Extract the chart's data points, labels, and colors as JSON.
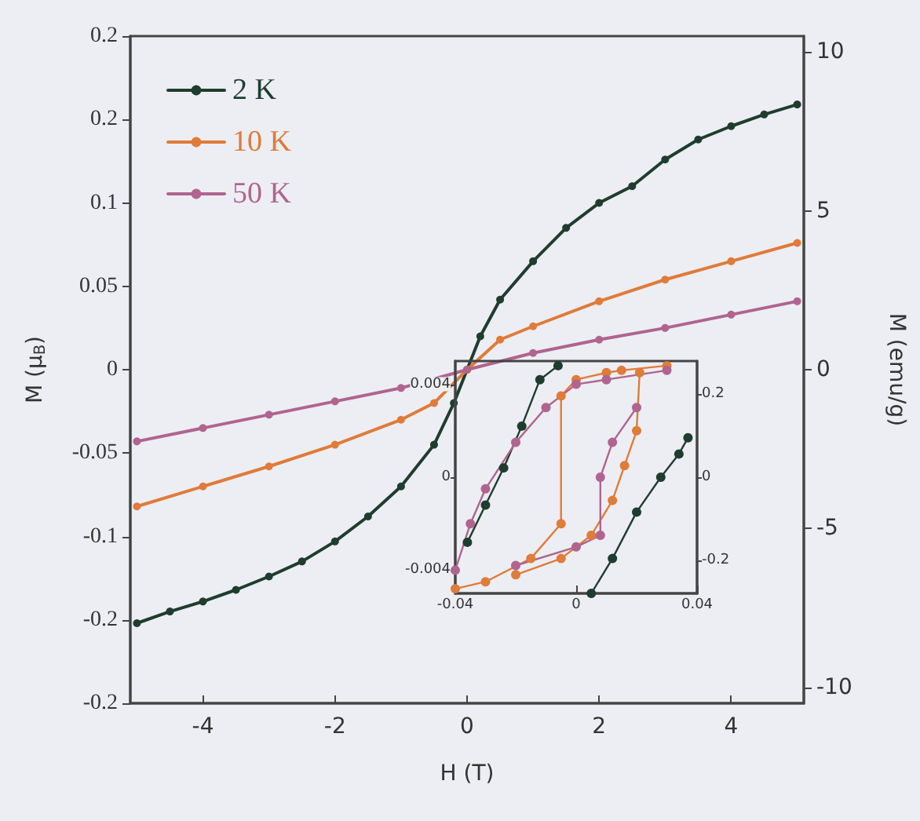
{
  "chart_data": [
    {
      "type": "line",
      "xlabel": "H (T)",
      "ylabel": "M (μ$_{B}$)",
      "y2label": "M (emu/g)",
      "xlim": [
        -5.1,
        5.1
      ],
      "xticks": [
        -4,
        -2,
        0,
        2,
        4
      ],
      "ylim": [
        -0.2,
        0.2
      ],
      "yticks": [
        -0.2,
        {
          "value": -0.15,
          "label": "-0.2"
        },
        -0.1,
        -0.05,
        0,
        0.05,
        0.1,
        {
          "value": 0.15,
          "label": "0.2"
        },
        0.2
      ],
      "y2lim": [
        -10.5,
        10.5
      ],
      "y2ticks": [
        -10,
        -5,
        0,
        5,
        10
      ],
      "legend": "top left",
      "marker": "circle",
      "line_style": "solid",
      "series": [
        {
          "name": "2 K",
          "color": "#1f3d2e",
          "x": [
            -5,
            -4.5,
            -4,
            -3.5,
            -3,
            -2.5,
            -2,
            -1.5,
            -1,
            -0.5,
            -0.2,
            0,
            0.2,
            0.5,
            1,
            1.5,
            2,
            2.5,
            3,
            3.5,
            4,
            4.5,
            5
          ],
          "values": [
            -0.152,
            -0.145,
            -0.139,
            -0.132,
            -0.124,
            -0.115,
            -0.103,
            -0.088,
            -0.07,
            -0.045,
            -0.02,
            0,
            0.02,
            0.042,
            0.065,
            0.085,
            0.1,
            0.11,
            0.126,
            0.138,
            0.146,
            0.153,
            0.159
          ]
        },
        {
          "name": "10 K",
          "color": "#e07b39",
          "x": [
            -5,
            -4,
            -3,
            -2,
            -1,
            -0.5,
            0,
            0.5,
            1,
            2,
            3,
            4,
            5
          ],
          "values": [
            -0.082,
            -0.07,
            -0.058,
            -0.045,
            -0.03,
            -0.02,
            0,
            0.018,
            0.026,
            0.041,
            0.054,
            0.065,
            0.076
          ]
        },
        {
          "name": "50 K",
          "color": "#b0648f",
          "x": [
            -5,
            -4,
            -3,
            -2,
            -1,
            0,
            1,
            2,
            3,
            4,
            5
          ],
          "values": [
            -0.043,
            -0.035,
            -0.027,
            -0.019,
            -0.011,
            0,
            0.01,
            0.018,
            0.025,
            0.033,
            0.041
          ]
        }
      ]
    },
    {
      "type": "line",
      "xlim": [
        -0.04,
        0.04
      ],
      "xticks": [
        -0.04,
        0,
        0.04
      ],
      "ylim": [
        -0.005,
        0.005
      ],
      "yticks": [
        -0.004,
        0,
        0.004
      ],
      "y2lim": [
        -0.28,
        0.28
      ],
      "y2ticks": [
        -0.2,
        0,
        0.2
      ],
      "marker": "circle",
      "line_style": "solid",
      "series": [
        {
          "color": "#1f3d2e",
          "x": [
            -0.036,
            -0.03,
            -0.024,
            -0.018,
            -0.012,
            -0.006
          ],
          "values": [
            -0.0028,
            -0.0012,
            0.0004,
            0.0022,
            0.0042,
            0.0048
          ]
        },
        {
          "color": "#1f3d2e",
          "x": [
            0.005,
            0.012,
            0.02,
            0.028,
            0.034,
            0.037
          ],
          "values": [
            -0.005,
            -0.0035,
            -0.0015,
            0,
            0.001,
            0.0017
          ]
        },
        {
          "color": "#e07b39",
          "x": [
            -0.04,
            -0.03,
            -0.015,
            -0.005,
            -0.005,
            0,
            0.01,
            0.015,
            0.03
          ],
          "values": [
            -0.0048,
            -0.0045,
            -0.0035,
            -0.002,
            0.0035,
            0.0042,
            0.0045,
            0.0046,
            0.0048
          ]
        },
        {
          "color": "#e07b39",
          "x": [
            -0.02,
            -0.005,
            0.005,
            0.012,
            0.016,
            0.02,
            0.021
          ],
          "values": [
            -0.0042,
            -0.0035,
            -0.0025,
            -0.001,
            0.0005,
            0.002,
            0.0045
          ]
        },
        {
          "color": "#b0648f",
          "x": [
            -0.04,
            -0.035,
            -0.03,
            -0.02,
            -0.01,
            0,
            0.01,
            0.03
          ],
          "values": [
            -0.004,
            -0.002,
            -0.0005,
            0.0015,
            0.003,
            0.004,
            0.0042,
            0.0046
          ]
        },
        {
          "color": "#b0648f",
          "x": [
            -0.02,
            0,
            0.008,
            0.008,
            0.012,
            0.02
          ],
          "values": [
            -0.0038,
            -0.003,
            -0.0025,
            0,
            0.0015,
            0.003
          ]
        }
      ]
    }
  ]
}
